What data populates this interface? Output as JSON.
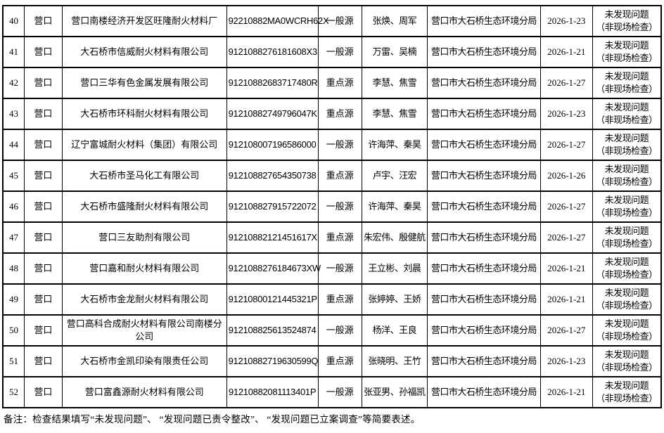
{
  "table": {
    "rows": [
      {
        "no": "40",
        "city": "营口",
        "company": "营口南楼经济开发区旺隆耐火材料厂",
        "code": "92210882MA0WCRH62X",
        "source_type": "一般源",
        "inspectors": "张焕、周军",
        "agency": "营口市大石桥生态环境分局",
        "date": "2026-1-23",
        "result_line1": "未发现问题",
        "result_line2": "（非现场检查）"
      },
      {
        "no": "41",
        "city": "营口",
        "company": "大石桥市信威耐火材料有限公司",
        "code": "9121088276181608X3",
        "source_type": "一般源",
        "inspectors": "万雷、吴楠",
        "agency": "营口市大石桥生态环境分局",
        "date": "2026-1-21",
        "result_line1": "未发现问题",
        "result_line2": "（非现场检查）"
      },
      {
        "no": "42",
        "city": "营口",
        "company": "营口三华有色金属发展有限公司",
        "code": "91210882683717480R",
        "source_type": "重点源",
        "inspectors": "李慧、焦雪",
        "agency": "营口市大石桥生态环境分局",
        "date": "2026-1-27",
        "result_line1": "未发现问题",
        "result_line2": "（非现场检查）"
      },
      {
        "no": "43",
        "city": "营口",
        "company": "大石桥市环科耐火材料有限公司",
        "code": "91210882749796047K",
        "source_type": "重点源",
        "inspectors": "李慧、焦雪",
        "agency": "营口市大石桥生态环境分局",
        "date": "2026-1-23",
        "result_line1": "未发现问题",
        "result_line2": "（非现场检查）"
      },
      {
        "no": "44",
        "city": "营口",
        "company": "辽宁富城耐火材料（集团）有限公司",
        "code": "912108007196586000",
        "source_type": "一般源",
        "inspectors": "许海萍、秦昊",
        "agency": "营口市大石桥生态环境分局",
        "date": "2026-1-27",
        "result_line1": "未发现问题",
        "result_line2": "（非现场检查）"
      },
      {
        "no": "45",
        "city": "营口",
        "company": "大石桥市圣马化工有限公司",
        "code": "912108827654350738",
        "source_type": "重点源",
        "inspectors": "卢宇、汪宏",
        "agency": "营口市大石桥生态环境分局",
        "date": "2026-1-26",
        "result_line1": "未发现问题",
        "result_line2": "（非现场检查）"
      },
      {
        "no": "46",
        "city": "营口",
        "company": "大石桥市盛隆耐火材料有限公司",
        "code": "912108827915722072",
        "source_type": "一般源",
        "inspectors": "许海萍、秦昊",
        "agency": "营口市大石桥生态环境分局",
        "date": "2026-1-27",
        "result_line1": "未发现问题",
        "result_line2": "（非现场检查）"
      },
      {
        "no": "47",
        "city": "营口",
        "company": "营口三友助剂有限公司",
        "code": "91210882121451617X",
        "source_type": "重点源",
        "inspectors": "朱宏伟、殷健航",
        "agency": "营口市大石桥生态环境分局",
        "date": "2026-1-27",
        "result_line1": "未发现问题",
        "result_line2": "（非现场检查）"
      },
      {
        "no": "48",
        "city": "营口",
        "company": "营口嘉和耐火材料有限公司",
        "code": "9121088276184673XW",
        "source_type": "一般源",
        "inspectors": "王立彬、刘晨",
        "agency": "营口市大石桥生态环境分局",
        "date": "2026-1-21",
        "result_line1": "未发现问题",
        "result_line2": "（非现场检查）"
      },
      {
        "no": "49",
        "city": "营口",
        "company": "大石桥市金龙耐火材料有限公司",
        "code": "91210800121445321P",
        "source_type": "重点源",
        "inspectors": "张婷婷、王娇",
        "agency": "营口市大石桥生态环境分局",
        "date": "2026-1-21",
        "result_line1": "未发现问题",
        "result_line2": "（非现场检查）"
      },
      {
        "no": "50",
        "city": "营口",
        "company": "营口高科合成耐火材料有限公司南楼分公司",
        "code": "912108825613524874",
        "source_type": "一般源",
        "inspectors": "杨洋、王良",
        "agency": "营口市大石桥生态环境分局",
        "date": "2026-1-27",
        "result_line1": "未发现问题",
        "result_line2": "（非现场检查）"
      },
      {
        "no": "51",
        "city": "营口",
        "company": "大石桥市金凯印染有限责任公司",
        "code": "91210882719630599Q",
        "source_type": "重点源",
        "inspectors": "张晓明、王竹",
        "agency": "营口市大石桥生态环境分局",
        "date": "2026-1-23",
        "result_line1": "未发现问题",
        "result_line2": "（非现场检查）"
      },
      {
        "no": "52",
        "city": "营口",
        "company": "营口富鑫源耐火材料有限公司",
        "code": "91210882081113401P",
        "source_type": "一般源",
        "inspectors": "张亚男、孙福凯",
        "agency": "营口市大石桥生态环境分局",
        "date": "2026-1-21",
        "result_line1": "未发现问题",
        "result_line2": "（非现场检查）"
      }
    ]
  },
  "footer": {
    "note": "备注：检查结果填写“未发现问题”、 “发现问题已责令整改”、 “发现问题已立案调查”等简要表述。"
  }
}
